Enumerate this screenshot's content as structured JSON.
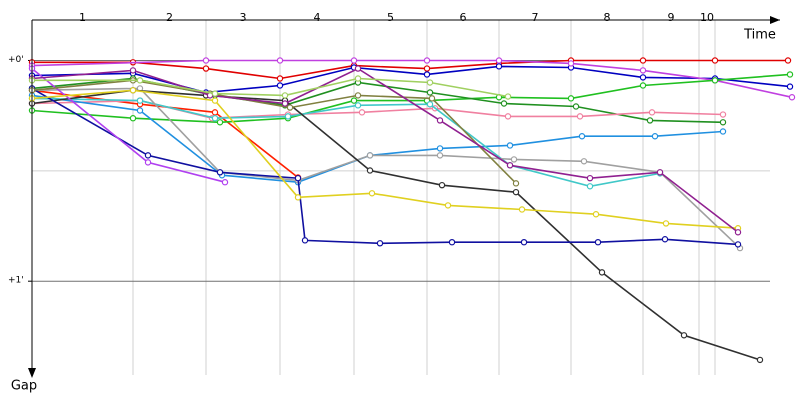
{
  "chart_data": {
    "type": "line",
    "xlabel": "Time",
    "ylabel": "Gap",
    "xlim": [
      0,
      760
    ],
    "ylim": [
      -11,
      85.5
    ],
    "yticks": [
      {
        "value": 0,
        "label": "+0'"
      },
      {
        "value": 60,
        "label": "+1'"
      }
    ],
    "gridlines": [
      0,
      30,
      60
    ],
    "laps": [
      "1",
      "2",
      "3",
      "4",
      "5",
      "6",
      "7",
      "8",
      "9",
      "10"
    ],
    "lap_boundaries": [
      101,
      174,
      248,
      322,
      395,
      467,
      539,
      611,
      667,
      683
    ],
    "series": [
      {
        "color": "#e00000",
        "x": [
          0,
          101,
          174,
          248,
          322,
          395,
          467,
          539,
          611,
          683,
          756
        ],
        "values": [
          0.5,
          0.5,
          2.2,
          4.9,
          1.4,
          2.2,
          0.8,
          0,
          0,
          0,
          0
        ]
      },
      {
        "color": "#ff2000",
        "x": [
          0,
          108,
          183,
          266
        ],
        "values": [
          8.1,
          11.9,
          14.1,
          31.8
        ]
      },
      {
        "color": "#0000c0",
        "x": [
          0,
          101,
          174,
          248,
          322,
          395,
          467,
          539,
          611,
          683,
          758
        ],
        "values": [
          4.1,
          3.5,
          8.7,
          6.8,
          1.9,
          3.8,
          1.6,
          1.9,
          4.6,
          4.9,
          7.1
        ]
      },
      {
        "color": "#c040e0",
        "x": [
          0,
          174,
          248,
          322,
          395,
          467,
          539,
          611,
          683,
          760
        ],
        "values": [
          1.4,
          0,
          0,
          0,
          0,
          0,
          0.8,
          2.7,
          5.4,
          10.0
        ]
      },
      {
        "color": "#20c020",
        "x": [
          0,
          101,
          188,
          256,
          322,
          395,
          467,
          539,
          611,
          683,
          758
        ],
        "values": [
          13.6,
          15.7,
          16.8,
          15.7,
          10.9,
          10.9,
          10.0,
          10.3,
          6.8,
          5.4,
          3.8
        ]
      },
      {
        "color": "#209020",
        "x": [
          0,
          101,
          183,
          253,
          326,
          398,
          472,
          544,
          618,
          691
        ],
        "values": [
          7.6,
          4.9,
          9.5,
          12.2,
          6.0,
          8.7,
          11.7,
          12.5,
          16.3,
          16.8
        ]
      },
      {
        "color": "#f080a0",
        "x": [
          0,
          108,
          180,
          256,
          330,
          403,
          476,
          548,
          620,
          691
        ],
        "values": [
          11.7,
          10.9,
          15.7,
          14.7,
          14.1,
          13.0,
          15.2,
          15.2,
          14.1,
          14.7
        ]
      },
      {
        "color": "#2090e0",
        "x": [
          0,
          108,
          190,
          266,
          338,
          408,
          478,
          550,
          623,
          691
        ],
        "values": [
          9.5,
          13.6,
          31.2,
          33.1,
          25.8,
          23.9,
          23.1,
          20.6,
          20.6,
          19.3
        ]
      },
      {
        "color": "#40c8c8",
        "x": [
          0,
          108,
          183,
          256,
          326,
          398,
          478,
          558,
          628
        ],
        "values": [
          10.3,
          10.9,
          15.7,
          15.2,
          12.2,
          11.9,
          28.5,
          34.2,
          30.7
        ]
      },
      {
        "color": "#a0a0a0",
        "x": [
          0,
          108,
          188,
          266,
          338,
          408,
          482,
          552,
          628,
          708
        ],
        "values": [
          8.1,
          7.6,
          30.4,
          32.6,
          25.8,
          25.8,
          26.9,
          27.4,
          30.4,
          51.0
        ]
      },
      {
        "color": "#303030",
        "x": [
          0,
          101,
          174,
          253,
          338,
          410,
          484,
          570,
          652,
          728
        ],
        "values": [
          11.7,
          8.1,
          9.5,
          10.9,
          29.9,
          33.9,
          35.8,
          57.6,
          74.7,
          81.4
        ]
      },
      {
        "color": "#1010a0",
        "x": [
          0,
          116,
          188,
          266,
          273,
          348,
          420,
          492,
          566,
          633,
          706
        ],
        "values": [
          7.6,
          25.8,
          30.4,
          32.0,
          48.9,
          49.7,
          49.4,
          49.4,
          49.4,
          48.6,
          50.0
        ]
      },
      {
        "color": "#b040f0",
        "x": [
          0,
          116,
          193
        ],
        "values": [
          2.2,
          27.7,
          33.1
        ]
      },
      {
        "color": "#e0d020",
        "x": [
          0,
          101,
          183,
          266,
          340,
          416,
          490,
          564,
          634,
          706
        ],
        "values": [
          10.3,
          8.1,
          10.9,
          37.2,
          36.1,
          39.4,
          40.5,
          41.8,
          44.3,
          45.6
        ]
      },
      {
        "color": "#808040",
        "x": [
          0,
          101,
          178,
          258,
          326,
          400,
          484
        ],
        "values": [
          8.1,
          5.4,
          9.0,
          12.8,
          9.5,
          10.3,
          33.4
        ]
      },
      {
        "color": "#902090",
        "x": [
          0,
          101,
          178,
          253,
          326,
          408,
          478,
          558,
          628,
          706
        ],
        "values": [
          4.9,
          2.7,
          9.5,
          11.7,
          2.2,
          16.3,
          28.5,
          32.0,
          30.4,
          46.7
        ]
      },
      {
        "color": "#a0d060",
        "x": [
          0,
          108,
          183,
          253,
          326,
          398,
          476
        ],
        "values": [
          5.4,
          5.4,
          9.0,
          9.5,
          4.9,
          6.0,
          9.8
        ]
      }
    ]
  }
}
